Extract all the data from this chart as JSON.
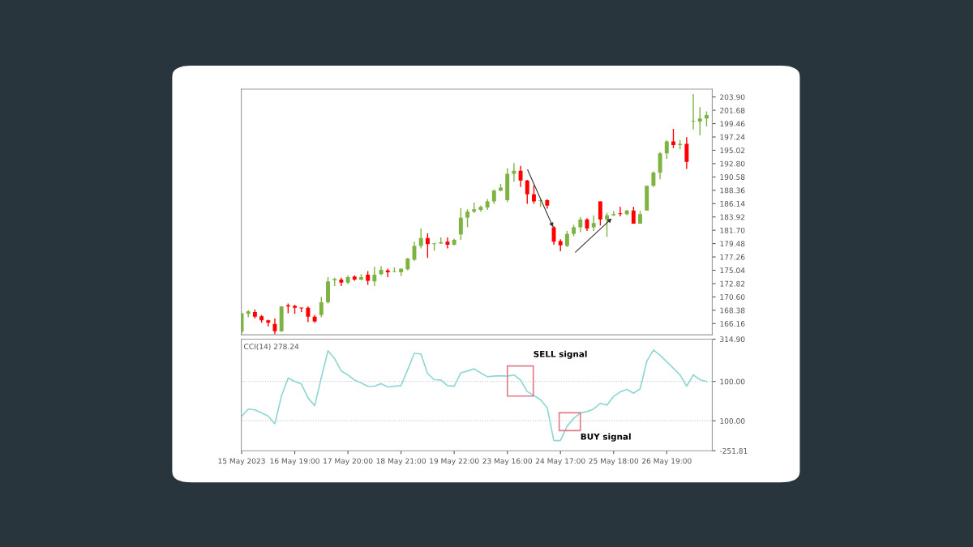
{
  "chart_data": [
    {
      "type": "candlestick",
      "tick_labels": "y",
      "grid": false,
      "categories": [
        null,
        null,
        null,
        null,
        null,
        null,
        null,
        null,
        null,
        null,
        null,
        null,
        null,
        null,
        null,
        null,
        null,
        null,
        null,
        null,
        null,
        null,
        null,
        null,
        null,
        null,
        null,
        null,
        null,
        null,
        null,
        null,
        null,
        null,
        null,
        null,
        null,
        null,
        null,
        null,
        null,
        null,
        null,
        null,
        null,
        null,
        null,
        null,
        null,
        null,
        null,
        null,
        null,
        null,
        null,
        null,
        null,
        null,
        null,
        null,
        null,
        null,
        null,
        null,
        null,
        null,
        null,
        null,
        null,
        null,
        null
      ],
      "ylim": [
        164.3,
        205.2
      ],
      "yticks": [
        {
          "value": 166.16,
          "label": "166.16"
        },
        {
          "value": 168.38,
          "label": "168.38"
        },
        {
          "value": 170.6,
          "label": "170.60"
        },
        {
          "value": 172.82,
          "label": "172.82"
        },
        {
          "value": 175.04,
          "label": "175.04"
        },
        {
          "value": 177.26,
          "label": "177.26"
        },
        {
          "value": 179.48,
          "label": "179.48"
        },
        {
          "value": 181.7,
          "label": "181.70"
        },
        {
          "value": 183.92,
          "label": "183.92"
        },
        {
          "value": 186.14,
          "label": "186.14"
        },
        {
          "value": 188.36,
          "label": "188.36"
        },
        {
          "value": 190.58,
          "label": "190.58"
        },
        {
          "value": 192.8,
          "label": "192.80"
        },
        {
          "value": 195.02,
          "label": "195.02"
        },
        {
          "value": 197.24,
          "label": "197.24"
        },
        {
          "value": 199.46,
          "label": "199.46"
        },
        {
          "value": 201.68,
          "label": "201.68"
        },
        {
          "value": 203.9,
          "label": "203.90"
        }
      ],
      "ohlc": [
        [
          164.8,
          167.9,
          164.4,
          167.9
        ],
        [
          167.8,
          168.4,
          167.2,
          168.2
        ],
        [
          168.1,
          168.5,
          167.0,
          167.3
        ],
        [
          167.4,
          167.6,
          166.3,
          166.7
        ],
        [
          166.7,
          166.8,
          165.7,
          166.3
        ],
        [
          166.1,
          167.0,
          164.4,
          164.9
        ],
        [
          164.9,
          169.1,
          164.8,
          169.0
        ],
        [
          169.2,
          169.5,
          167.9,
          169.0
        ],
        [
          169.1,
          169.3,
          167.8,
          168.8
        ],
        [
          168.8,
          168.8,
          168.1,
          168.7
        ],
        [
          168.8,
          169.0,
          166.4,
          167.3
        ],
        [
          167.3,
          167.6,
          166.3,
          166.5
        ],
        [
          167.6,
          170.6,
          167.2,
          169.7
        ],
        [
          169.7,
          173.9,
          169.5,
          173.2
        ],
        [
          173.4,
          173.8,
          172.4,
          173.6
        ],
        [
          173.5,
          173.8,
          172.4,
          173.0
        ],
        [
          173.0,
          174.2,
          172.7,
          173.9
        ],
        [
          174.0,
          174.2,
          173.3,
          173.5
        ],
        [
          173.5,
          174.4,
          173.4,
          173.9
        ],
        [
          174.3,
          174.9,
          172.6,
          173.3
        ],
        [
          173.2,
          175.6,
          172.4,
          174.3
        ],
        [
          174.4,
          175.7,
          174.2,
          175.1
        ],
        [
          175.0,
          175.3,
          173.9,
          174.7
        ],
        [
          174.7,
          175.5,
          174.7,
          174.8
        ],
        [
          174.7,
          175.3,
          174.1,
          175.3
        ],
        [
          175.2,
          177.1,
          175.0,
          177.0
        ],
        [
          176.8,
          179.8,
          176.6,
          179.1
        ],
        [
          179.1,
          182.0,
          178.7,
          180.4
        ],
        [
          180.4,
          181.2,
          177.1,
          179.4
        ],
        [
          179.4,
          179.6,
          178.3,
          179.5
        ],
        [
          179.5,
          180.5,
          179.4,
          179.7
        ],
        [
          179.8,
          180.5,
          178.7,
          179.3
        ],
        [
          179.3,
          180.3,
          179.2,
          180.1
        ],
        [
          181.0,
          185.4,
          180.1,
          183.8
        ],
        [
          183.8,
          185.2,
          182.2,
          184.8
        ],
        [
          184.8,
          186.3,
          184.6,
          185.2
        ],
        [
          185.1,
          185.8,
          184.8,
          185.6
        ],
        [
          185.5,
          186.9,
          185.1,
          186.5
        ],
        [
          186.5,
          188.5,
          186.1,
          188.3
        ],
        [
          188.3,
          189.4,
          188.2,
          188.8
        ],
        [
          186.7,
          192.0,
          186.4,
          191.1
        ],
        [
          191.1,
          192.9,
          189.8,
          191.6
        ],
        [
          191.6,
          192.4,
          188.9,
          190.0
        ],
        [
          190.0,
          190.1,
          186.1,
          187.7
        ],
        [
          187.7,
          189.2,
          186.1,
          186.5
        ],
        [
          186.6,
          186.8,
          185.6,
          186.7
        ],
        [
          186.7,
          186.9,
          185.3,
          185.8
        ],
        [
          182.2,
          182.4,
          179.3,
          179.8
        ],
        [
          179.9,
          180.2,
          178.2,
          179.2
        ],
        [
          179.1,
          181.6,
          178.9,
          181.1
        ],
        [
          181.1,
          182.6,
          180.7,
          182.2
        ],
        [
          182.2,
          183.9,
          181.4,
          183.5
        ],
        [
          183.5,
          183.7,
          181.6,
          182.0
        ],
        [
          182.2,
          184.2,
          181.6,
          182.9
        ],
        [
          186.5,
          186.5,
          182.5,
          183.5
        ],
        [
          183.5,
          184.6,
          180.6,
          184.2
        ],
        [
          184.2,
          184.9,
          184.1,
          184.4
        ],
        [
          184.5,
          185.6,
          184.0,
          184.4
        ],
        [
          184.4,
          185.1,
          184.2,
          185.0
        ],
        [
          185.0,
          185.6,
          182.8,
          182.8
        ],
        [
          182.8,
          184.9,
          182.8,
          184.4
        ],
        [
          185.0,
          189.1,
          185.0,
          189.1
        ],
        [
          189.1,
          191.5,
          188.9,
          191.3
        ],
        [
          191.3,
          194.7,
          190.2,
          194.5
        ],
        [
          194.5,
          196.7,
          193.6,
          196.5
        ],
        [
          196.5,
          198.6,
          195.4,
          195.9
        ],
        [
          195.9,
          196.7,
          195.2,
          196.1
        ],
        [
          196.1,
          197.2,
          191.9,
          193.1
        ],
        [
          199.8,
          204.4,
          198.5,
          199.9
        ],
        [
          199.8,
          202.2,
          197.5,
          200.3
        ],
        [
          200.3,
          201.5,
          199.0,
          200.9
        ]
      ],
      "colors": [
        "#7cb342",
        "#7cb342",
        "#ff0000",
        "#ff0000",
        "#ff0000",
        "#ff0000",
        "#7cb342",
        "#ff0000",
        "#ff0000",
        "#ff0000",
        "#ff0000",
        "#ff0000",
        "#7cb342",
        "#7cb342",
        "#7cb342",
        "#ff0000",
        "#7cb342",
        "#ff0000",
        "#7cb342",
        "#ff0000",
        "#7cb342",
        "#7cb342",
        "#ff0000",
        "#7cb342",
        "#7cb342",
        "#7cb342",
        "#7cb342",
        "#7cb342",
        "#ff0000",
        "#7cb342",
        "#7cb342",
        "#ff0000",
        "#7cb342",
        "#7cb342",
        "#7cb342",
        "#7cb342",
        "#7cb342",
        "#7cb342",
        "#7cb342",
        "#7cb342",
        "#7cb342",
        "#7cb342",
        "#ff0000",
        "#ff0000",
        "#ff0000",
        "#7cb342",
        "#ff0000",
        "#ff0000",
        "#ff0000",
        "#7cb342",
        "#7cb342",
        "#7cb342",
        "#ff0000",
        "#7cb342",
        "#ff0000",
        "#7cb342",
        "#7cb342",
        "#ff0000",
        "#7cb342",
        "#ff0000",
        "#7cb342",
        "#7cb342",
        "#7cb342",
        "#7cb342",
        "#7cb342",
        "#ff0000",
        "#7cb342",
        "#ff0000",
        "#7cb342",
        "#7cb342",
        "#7cb342"
      ]
    },
    {
      "type": "line",
      "grid": false,
      "marker": "none",
      "line_style": "solid",
      "categories": [
        "15 May 2023",
        null,
        null,
        null,
        null,
        null,
        null,
        null,
        "16 May 19:00",
        null,
        null,
        null,
        null,
        null,
        null,
        null,
        "17 May 20:00",
        null,
        null,
        null,
        null,
        null,
        null,
        null,
        "18 May 21:00",
        null,
        null,
        null,
        null,
        null,
        null,
        null,
        "19 May 22:00",
        null,
        null,
        null,
        null,
        null,
        null,
        null,
        "23 May 16:00",
        null,
        null,
        null,
        null,
        null,
        null,
        null,
        "24 May 17:00",
        null,
        null,
        null,
        null,
        null,
        null,
        null,
        "25 May 18:00",
        null,
        null,
        null,
        null,
        null,
        null,
        null,
        "26 May 19:00",
        null,
        null,
        null,
        null,
        null,
        null
      ],
      "ylim": [
        -251.81,
        314.9
      ],
      "yticks": [
        {
          "value": -251.81,
          "label": "-251.81"
        },
        {
          "value": -100,
          "label": "100.00"
        },
        {
          "value": 100,
          "label": "100.00"
        },
        {
          "value": 314.9,
          "label": "314.90"
        }
      ],
      "series": [
        {
          "color": "#8fd6d4",
          "values": [
            -77,
            -40,
            -44,
            -60,
            -76,
            -115,
            27,
            117,
            100,
            87,
            16,
            -23,
            120,
            256,
            216,
            153,
            133,
            107,
            93,
            75,
            76,
            89,
            72,
            76,
            79,
            160,
            243,
            239,
            140,
            109,
            107,
            79,
            76,
            144,
            153,
            164,
            143,
            124,
            127,
            129,
            127,
            133,
            107,
            49,
            29,
            7,
            -33,
            -200,
            -200,
            -127,
            -87,
            -60,
            -53,
            -40,
            -11,
            -20,
            24,
            47,
            60,
            40,
            63,
            203,
            260,
            233,
            200,
            167,
            133,
            76,
            133,
            109,
            100
          ]
        }
      ],
      "ref_lines": [
        {
          "axis": "y",
          "value": 100,
          "label": null,
          "color": "#bbbbbb",
          "line_style": "dotted"
        },
        {
          "axis": "y",
          "value": -100,
          "label": null,
          "color": "#bbbbbb",
          "line_style": "dotted"
        }
      ],
      "annotations": [
        "CCI(14) 278.24",
        "SELL signal",
        "BUY signal"
      ]
    }
  ]
}
